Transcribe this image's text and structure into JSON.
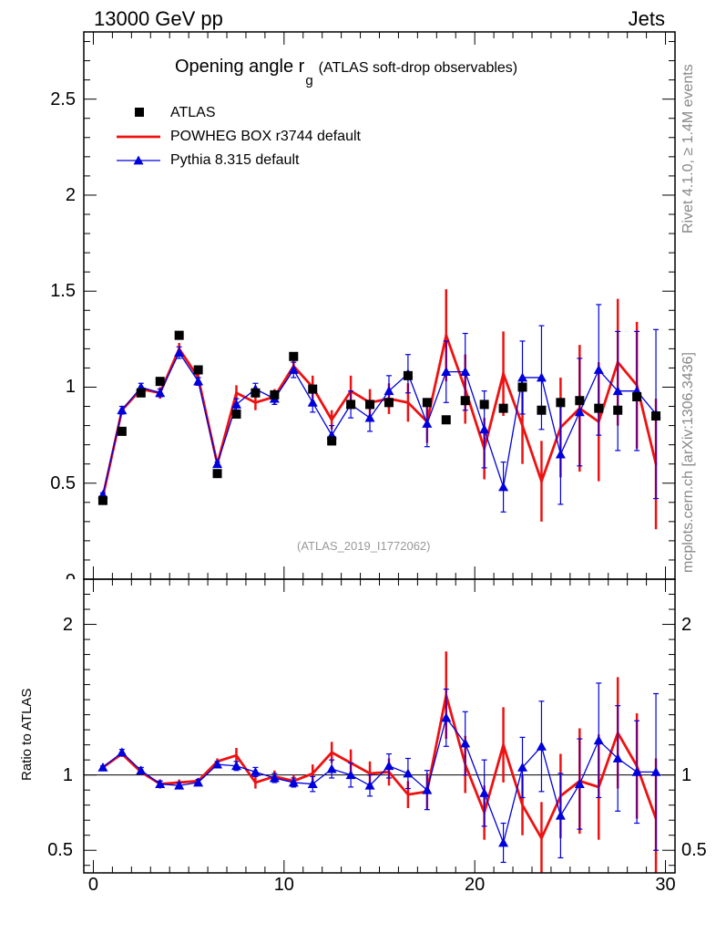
{
  "header": {
    "left": "13000 GeV pp",
    "right": "Jets",
    "side_top": "Rivet 4.1.0, ≥ 1.4M events",
    "side_bottom": "mcplots.cern.ch [arXiv:1306.3436]"
  },
  "colors": {
    "data": "#000000",
    "powheg": "#ee1111",
    "pythia": "#0000dd",
    "reference_text": "#999999"
  },
  "chart_data": {
    "type": "scatter",
    "title": "Opening angle r",
    "title_sub": "g",
    "title_suffix": "(ATLAS soft-drop observables)",
    "reference": "(ATLAS_2019_I1772062)",
    "ylabel_ratio": "Ratio to ATLAS",
    "x": [
      0.5,
      1.5,
      2.5,
      3.5,
      4.5,
      5.5,
      6.5,
      7.5,
      8.5,
      9.5,
      10.5,
      11.5,
      12.5,
      13.5,
      14.5,
      15.5,
      16.5,
      17.5,
      18.5,
      19.5,
      20.5,
      21.5,
      22.5,
      23.5,
      24.5,
      25.5,
      26.5,
      27.5,
      28.5,
      29.5
    ],
    "xlim": [
      -0.5,
      30.5
    ],
    "main_ylim": [
      0,
      2.85
    ],
    "ratio_ylim": [
      0.35,
      2.3
    ],
    "main_yticks": [
      0.5,
      1,
      1.5,
      2,
      2.5
    ],
    "main_ytick_labels": [
      "0.5",
      "1",
      "1.5",
      "2",
      "2.5"
    ],
    "main_bottom_label": "0",
    "ratio_yticks": [
      0.5,
      1,
      2
    ],
    "ratio_ytick_labels": [
      "0.5",
      "1",
      "2"
    ],
    "xticks": [
      0,
      10,
      20,
      30
    ],
    "xtick_labels": [
      "0",
      "10",
      "20",
      "30"
    ],
    "series": [
      {
        "name": "ATLAS",
        "style": "markers",
        "values": [
          0.41,
          0.77,
          0.97,
          1.03,
          1.27,
          1.09,
          0.55,
          0.86,
          0.97,
          0.96,
          1.16,
          0.99,
          0.72,
          0.91,
          0.91,
          0.92,
          1.06,
          0.92,
          0.83,
          0.93,
          0.91,
          0.89,
          1.0,
          0.88,
          0.92,
          0.93,
          0.89,
          0.88,
          0.95,
          0.85
        ]
      },
      {
        "name": "POWHEG BOX r3744 default",
        "style": "line",
        "values": [
          0.43,
          0.88,
          0.99,
          0.97,
          1.2,
          1.05,
          0.6,
          0.97,
          0.92,
          0.95,
          1.11,
          1.0,
          0.83,
          0.98,
          0.92,
          0.94,
          0.92,
          0.82,
          1.27,
          0.99,
          0.68,
          1.07,
          0.8,
          0.51,
          0.79,
          0.89,
          0.82,
          1.13,
          1.01,
          0.6
        ],
        "errors": [
          0.01,
          0.02,
          0.02,
          0.03,
          0.03,
          0.02,
          0.01,
          0.04,
          0.04,
          0.04,
          0.04,
          0.06,
          0.05,
          0.08,
          0.07,
          0.08,
          0.1,
          0.11,
          0.24,
          0.18,
          0.16,
          0.22,
          0.2,
          0.21,
          0.26,
          0.33,
          0.31,
          0.33,
          0.33,
          0.34
        ],
        "ratio": [
          1.05,
          1.14,
          1.02,
          0.94,
          0.95,
          0.96,
          1.09,
          1.13,
          0.95,
          0.99,
          0.96,
          1.01,
          1.15,
          1.08,
          1.01,
          1.02,
          0.87,
          0.89,
          1.53,
          1.07,
          0.75,
          1.2,
          0.8,
          0.58,
          0.86,
          0.96,
          0.92,
          1.28,
          1.06,
          0.71
        ],
        "ratio_errors": [
          0.01,
          0.02,
          0.02,
          0.03,
          0.02,
          0.02,
          0.02,
          0.05,
          0.04,
          0.04,
          0.04,
          0.06,
          0.07,
          0.09,
          0.08,
          0.09,
          0.09,
          0.12,
          0.29,
          0.19,
          0.18,
          0.25,
          0.2,
          0.24,
          0.28,
          0.35,
          0.35,
          0.37,
          0.35,
          0.4
        ]
      },
      {
        "name": "Pythia 8.315 default",
        "style": "line-markers",
        "values": [
          0.44,
          0.88,
          1.0,
          0.97,
          1.18,
          1.03,
          0.6,
          0.91,
          0.99,
          0.94,
          1.09,
          0.92,
          0.75,
          0.91,
          0.84,
          0.98,
          1.07,
          0.81,
          1.08,
          1.08,
          0.78,
          0.48,
          1.05,
          1.05,
          0.65,
          0.87,
          1.09,
          0.98,
          0.98,
          0.86
        ],
        "errors": [
          0.01,
          0.02,
          0.02,
          0.02,
          0.03,
          0.02,
          0.01,
          0.03,
          0.03,
          0.03,
          0.04,
          0.05,
          0.05,
          0.07,
          0.07,
          0.08,
          0.1,
          0.12,
          0.16,
          0.2,
          0.2,
          0.13,
          0.19,
          0.27,
          0.26,
          0.28,
          0.34,
          0.31,
          0.31,
          0.44
        ],
        "ratio": [
          1.05,
          1.15,
          1.03,
          0.94,
          0.93,
          0.95,
          1.07,
          1.06,
          1.02,
          0.98,
          0.95,
          0.94,
          1.04,
          1.0,
          0.93,
          1.06,
          1.01,
          0.9,
          1.38,
          1.21,
          0.88,
          0.55,
          1.05,
          1.19,
          0.73,
          0.94,
          1.23,
          1.11,
          1.02,
          1.02
        ],
        "ratio_errors": [
          0.01,
          0.02,
          0.02,
          0.02,
          0.02,
          0.02,
          0.02,
          0.03,
          0.03,
          0.03,
          0.03,
          0.05,
          0.06,
          0.08,
          0.07,
          0.08,
          0.1,
          0.13,
          0.19,
          0.21,
          0.22,
          0.13,
          0.2,
          0.3,
          0.28,
          0.3,
          0.38,
          0.35,
          0.34,
          0.52
        ]
      }
    ]
  }
}
